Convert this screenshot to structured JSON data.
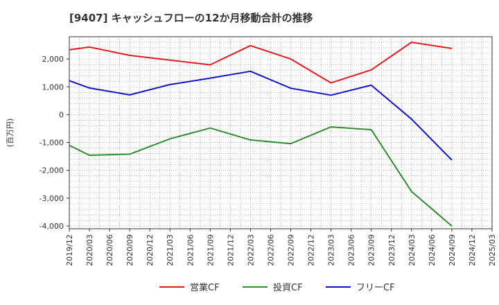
{
  "chart_data": {
    "type": "line",
    "title": "[9407]  キャッシュフローの12か月移動合計の推移",
    "ylabel": "(百万円)",
    "xlabel": "",
    "ylim": [
      -4100,
      2800
    ],
    "yticks": [
      2000,
      1000,
      0,
      -1000,
      -2000,
      -3000,
      -4000
    ],
    "ytick_labels": [
      "2,000",
      "1,000",
      "0",
      "-1,000",
      "-2,000",
      "-3,000",
      "-4,000"
    ],
    "x_ticks": [
      "2019/12",
      "2020/03",
      "2020/06",
      "2020/09",
      "2020/12",
      "2021/03",
      "2021/06",
      "2021/09",
      "2021/12",
      "2022/03",
      "2022/06",
      "2022/09",
      "2022/12",
      "2023/03",
      "2023/06",
      "2023/09",
      "2023/12",
      "2024/03",
      "2024/06",
      "2024/09",
      "2024/12",
      "2025/03"
    ],
    "grid": true,
    "legend_position": "bottom",
    "series": [
      {
        "name": "営業CF",
        "color": "#e31a1c",
        "x": [
          "2019/12",
          "2020/03",
          "2020/09",
          "2021/03",
          "2021/09",
          "2022/03",
          "2022/09",
          "2023/03",
          "2023/09",
          "2024/03",
          "2024/09"
        ],
        "values": [
          2330,
          2430,
          2130,
          1960,
          1790,
          2480,
          2000,
          1140,
          1610,
          2600,
          2380
        ]
      },
      {
        "name": "投資CF",
        "color": "#2e8b2e",
        "x": [
          "2019/12",
          "2020/03",
          "2020/09",
          "2021/03",
          "2021/09",
          "2022/03",
          "2022/09",
          "2023/03",
          "2023/09",
          "2024/03",
          "2024/09"
        ],
        "values": [
          -1100,
          -1460,
          -1420,
          -870,
          -480,
          -910,
          -1040,
          -440,
          -540,
          -2760,
          -4000
        ]
      },
      {
        "name": "フリーCF",
        "color": "#1010cc",
        "x": [
          "2019/12",
          "2020/03",
          "2020/09",
          "2021/03",
          "2021/09",
          "2022/03",
          "2022/09",
          "2023/03",
          "2023/09",
          "2024/03",
          "2024/09"
        ],
        "values": [
          1220,
          960,
          710,
          1080,
          1310,
          1560,
          950,
          700,
          1060,
          -160,
          -1630
        ]
      }
    ]
  }
}
